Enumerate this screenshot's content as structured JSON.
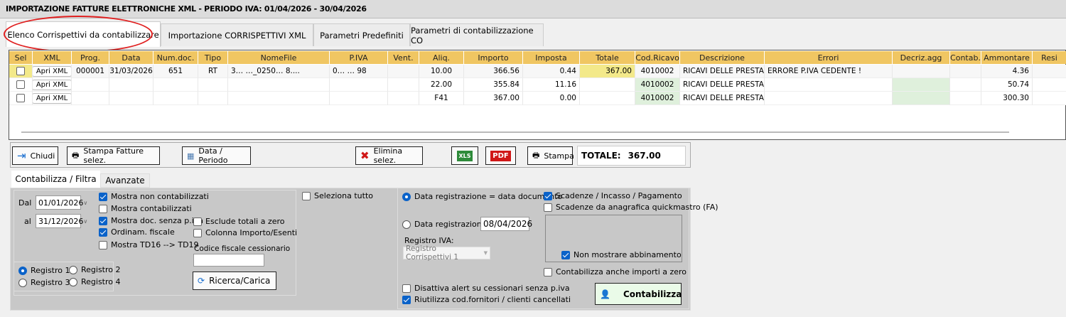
{
  "window": {
    "title": "IMPORTAZIONE FATTURE ELETTRONICHE XML - PERIODO IVA: 01/04/2026 - 30/04/2026"
  },
  "tabs": [
    "Elenco Corrispettivi da contabilizzare",
    "Importazione CORRISPETTIVI XML",
    "Parametri Predefiniti",
    "Parametri di contabilizzazione CO"
  ],
  "grid": {
    "columns": [
      "Sel",
      "XML",
      "Prog.",
      "Data",
      "Num.doc.",
      "Tipo",
      "NomeFile",
      "P.IVA",
      "Vent.",
      "Aliq.",
      "Importo",
      "Imposta",
      "Totale",
      "Cod.Ricavo",
      "Descrizione",
      "Errori",
      "Decriz.agg",
      "Contab.",
      "Ammontare",
      "Resi"
    ],
    "rows": [
      {
        "xml": "Apri XML",
        "prog": "000001",
        "data": "31/03/2026",
        "numdoc": "651",
        "tipo": "RT",
        "nomefile": "3… …_0250…  8....",
        "piva": "0…  …  98",
        "vent": "",
        "aliq": "10.00",
        "importo": "366.56",
        "imposta": "0.44",
        "totale": "367.00",
        "codricavo": "4010002",
        "descrizione": "RICAVI DELLE PRESTA...",
        "errori": "ERRORE P.IVA  CEDENTE !",
        "decriz": "",
        "contab": "",
        "ammontare": "4.36",
        "resi": ""
      },
      {
        "xml": "Apri XML",
        "prog": "",
        "data": "",
        "numdoc": "",
        "tipo": "",
        "nomefile": "",
        "piva": "",
        "vent": "",
        "aliq": "22.00",
        "importo": "355.84",
        "imposta": "11.16",
        "totale": "",
        "codricavo": "4010002",
        "descrizione": "RICAVI DELLE PRESTA...",
        "errori": "",
        "decriz": "",
        "contab": "",
        "ammontare": "50.74",
        "resi": ""
      },
      {
        "xml": "Apri XML",
        "prog": "",
        "data": "",
        "numdoc": "",
        "tipo": "",
        "nomefile": "",
        "piva": "",
        "vent": "",
        "aliq": "F41",
        "importo": "367.00",
        "imposta": "0.00",
        "totale": "",
        "codricavo": "4010002",
        "descrizione": "RICAVI DELLE PRESTA...",
        "errori": "",
        "decriz": "",
        "contab": "",
        "ammontare": "300.30",
        "resi": ""
      }
    ]
  },
  "toolbar": {
    "chiudi": "Chiudi",
    "stampa_fatture": "Stampa Fatture selez.",
    "data_periodo": "Data / Periodo",
    "elimina": "Elimina selez.",
    "xls": "XLS",
    "pdf": "PDF",
    "stampa": "Stampa",
    "totale_label": "TOTALE:",
    "totale_value": "367.00"
  },
  "subtabs": [
    "Contabilizza / Filtra",
    "Avanzate"
  ],
  "filters": {
    "dal_label": "Dal",
    "dal": "01/01/2026",
    "al_label": "al",
    "al": "31/12/2026",
    "checks": [
      {
        "label": "Mostra non contabilizzati",
        "checked": true
      },
      {
        "label": "Mostra contabilizzati",
        "checked": false
      },
      {
        "label": "Mostra doc. senza p.iva",
        "checked": true
      },
      {
        "label": "Ordinam. fiscale",
        "checked": true
      },
      {
        "label": "Mostra TD16 --> TD19",
        "checked": false
      }
    ],
    "esclude": {
      "label": "Esclude totali a zero",
      "checked": false
    },
    "colonna": {
      "label": "Colonna Importo/Esenti",
      "checked": false
    },
    "cf_label": "Codice fiscale cessionario",
    "cf_value": "",
    "ricerca": "Ricerca/Carica",
    "registri": [
      {
        "label": "Registro 1",
        "selected": true
      },
      {
        "label": "Registro 2",
        "selected": false
      },
      {
        "label": "Registro 3",
        "selected": false
      },
      {
        "label": "Registro 4",
        "selected": false
      }
    ],
    "seleziona_tutto": {
      "label": "Seleziona tutto",
      "checked": false
    }
  },
  "contabilizza": {
    "data_doc": {
      "label": "Data registrazione = data documento",
      "selected": true
    },
    "data_fissa": {
      "label": "Data registrazione =",
      "selected": false,
      "value": "08/04/2026"
    },
    "registro_iva_label": "Registro IVA:",
    "registro_iva": "Registro Corrispettivi 1",
    "disattiva": {
      "label": "Disattiva alert su cessionari senza p.iva",
      "checked": false
    },
    "riutilizza": {
      "label": "Riutilizza cod.fornitori / clienti cancellati",
      "checked": true
    },
    "scadenze": {
      "label": "Scadenze / Incasso / Pagamento",
      "checked": true
    },
    "scadenze_fa": {
      "label": "Scadenze da anagrafica quickmastro (FA)",
      "checked": false
    },
    "non_mostrare": {
      "label": "Non mostrare abbinamento",
      "checked": true
    },
    "anche_zero": {
      "label": "Contabilizza anche importi a zero",
      "checked": false
    },
    "button": "Contabilizza"
  },
  "colors": {
    "header": "#f0c662",
    "totale_hl": "#f3e98a",
    "cod_green": "#dff0dc",
    "panel": "#c8c8c8",
    "accent": "#0a62c9"
  }
}
